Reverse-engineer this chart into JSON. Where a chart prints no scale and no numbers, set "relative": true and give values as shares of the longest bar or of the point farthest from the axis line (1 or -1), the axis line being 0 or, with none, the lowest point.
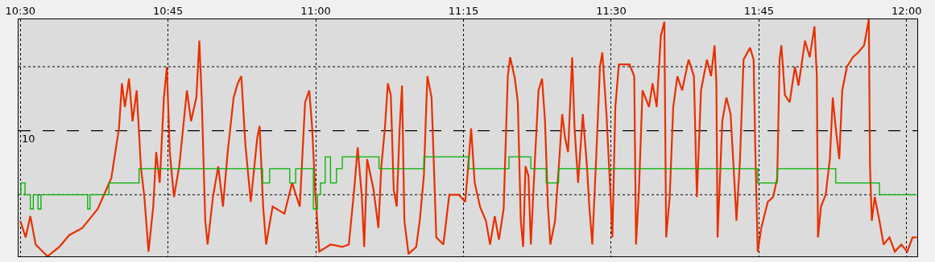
{
  "chart_data": {
    "type": "line",
    "relative": true,
    "grid": "x",
    "marker": "none",
    "line_style": "solid",
    "xlim": [
      10.497,
      12.018
    ],
    "xticks": [
      {
        "value": 10.5,
        "label": "10:30"
      },
      {
        "value": 10.75,
        "label": "10:45"
      },
      {
        "value": 11,
        "label": "11:00"
      },
      {
        "value": 11.25,
        "label": "11:15"
      },
      {
        "value": 11.5,
        "label": "11:30"
      },
      {
        "value": 11.75,
        "label": "11:45"
      },
      {
        "value": 12,
        "label": "12:00"
      }
    ],
    "ref_lines": [
      {
        "axis": "y",
        "value": 0.8,
        "label": null,
        "line_style": "dotted",
        "color": "#000000"
      },
      {
        "axis": "y",
        "value": 0.53,
        "label": null,
        "line_style": "dashed",
        "color": "#000000"
      },
      {
        "axis": "y",
        "value": 0.26,
        "label": null,
        "line_style": "dotted",
        "color": "#000000"
      }
    ],
    "annotations": [
      "10"
    ],
    "series": [
      {
        "color": "#e83000",
        "x": [
          10.5,
          10.509,
          10.517,
          10.526,
          10.546,
          10.566,
          10.583,
          10.605,
          10.631,
          10.654,
          10.667,
          10.672,
          10.677,
          10.684,
          10.69,
          10.697,
          10.704,
          10.71,
          10.717,
          10.725,
          10.73,
          10.736,
          10.743,
          10.748,
          10.753,
          10.76,
          10.769,
          10.782,
          10.789,
          10.798,
          10.803,
          10.807,
          10.813,
          10.817,
          10.826,
          10.835,
          10.843,
          10.851,
          10.861,
          10.868,
          10.874,
          10.881,
          10.89,
          10.901,
          10.905,
          10.911,
          10.916,
          10.927,
          10.947,
          10.96,
          10.973,
          10.982,
          10.989,
          10.994,
          10.999,
          11.006,
          11.025,
          11.045,
          11.056,
          11.065,
          11.071,
          11.078,
          11.082,
          11.087,
          11.098,
          11.106,
          11.111,
          11.117,
          11.122,
          11.127,
          11.132,
          11.137,
          11.142,
          11.146,
          11.15,
          11.157,
          11.17,
          11.176,
          11.183,
          11.187,
          11.189,
          11.196,
          11.2,
          11.204,
          11.216,
          11.226,
          11.242,
          11.253,
          11.258,
          11.263,
          11.269,
          11.278,
          11.288,
          11.295,
          11.303,
          11.31,
          11.318,
          11.325,
          11.329,
          11.337,
          11.342,
          11.347,
          11.351,
          11.355,
          11.36,
          11.364,
          11.371,
          11.377,
          11.383,
          11.388,
          11.393,
          11.397,
          11.405,
          11.413,
          11.417,
          11.422,
          11.427,
          11.434,
          11.438,
          11.444,
          11.452,
          11.459,
          11.463,
          11.468,
          11.475,
          11.481,
          11.485,
          11.492,
          11.499,
          11.502,
          11.507,
          11.513,
          11.52,
          11.531,
          11.539,
          11.542,
          11.547,
          11.553,
          11.564,
          11.57,
          11.577,
          11.584,
          11.59,
          11.593,
          11.599,
          11.605,
          11.612,
          11.62,
          11.631,
          11.64,
          11.645,
          11.652,
          11.662,
          11.669,
          11.675,
          11.678,
          11.68,
          11.688,
          11.695,
          11.702,
          11.708,
          11.712,
          11.718,
          11.724,
          11.735,
          11.741,
          11.744,
          11.748,
          11.754,
          11.765,
          11.774,
          11.781,
          11.785,
          11.788,
          11.794,
          11.802,
          11.811,
          11.817,
          11.828,
          11.836,
          11.844,
          11.848,
          11.85,
          11.855,
          11.863,
          11.87,
          11.875,
          11.88,
          11.886,
          11.891,
          11.899,
          11.909,
          11.918,
          11.928,
          11.936,
          11.938,
          11.941,
          11.946,
          11.954,
          11.961,
          11.971,
          11.98,
          11.991,
          12.001,
          12.01,
          12.017
        ],
        "values": [
          0.15,
          0.08,
          0.17,
          0.05,
          0,
          0.04,
          0.09,
          0.12,
          0.2,
          0.33,
          0.54,
          0.73,
          0.63,
          0.75,
          0.57,
          0.7,
          0.38,
          0.25,
          0.02,
          0.21,
          0.44,
          0.31,
          0.67,
          0.8,
          0.44,
          0.25,
          0.38,
          0.7,
          0.57,
          0.67,
          0.91,
          0.67,
          0.15,
          0.05,
          0.25,
          0.38,
          0.21,
          0.44,
          0.67,
          0.73,
          0.76,
          0.47,
          0.23,
          0.5,
          0.55,
          0.21,
          0.05,
          0.21,
          0.18,
          0.31,
          0.21,
          0.65,
          0.7,
          0.54,
          0.28,
          0.02,
          0.05,
          0.04,
          0.05,
          0.28,
          0.46,
          0.25,
          0.04,
          0.41,
          0.28,
          0.12,
          0.38,
          0.54,
          0.73,
          0.68,
          0.28,
          0.21,
          0.54,
          0.72,
          0.15,
          0.01,
          0.04,
          0.15,
          0.34,
          0.63,
          0.76,
          0.67,
          0.38,
          0.08,
          0.05,
          0.26,
          0.26,
          0.23,
          0.38,
          0.54,
          0.31,
          0.21,
          0.15,
          0.05,
          0.17,
          0.07,
          0.2,
          0.76,
          0.84,
          0.75,
          0.65,
          0.15,
          0.04,
          0.38,
          0.34,
          0.05,
          0.41,
          0.7,
          0.75,
          0.57,
          0.21,
          0.05,
          0.15,
          0.44,
          0.6,
          0.5,
          0.44,
          0.84,
          0.54,
          0.31,
          0.6,
          0.38,
          0.21,
          0.05,
          0.44,
          0.8,
          0.86,
          0.6,
          0.25,
          0.08,
          0.63,
          0.81,
          0.81,
          0.81,
          0.76,
          0.05,
          0.28,
          0.7,
          0.63,
          0.73,
          0.63,
          0.93,
          0.99,
          0.08,
          0.25,
          0.63,
          0.76,
          0.7,
          0.83,
          0.76,
          0.25,
          0.7,
          0.83,
          0.76,
          0.89,
          0.73,
          0.08,
          0.57,
          0.67,
          0.6,
          0.34,
          0.15,
          0.41,
          0.83,
          0.88,
          0.83,
          0.44,
          0.02,
          0.12,
          0.23,
          0.25,
          0.33,
          0.83,
          0.89,
          0.68,
          0.65,
          0.8,
          0.72,
          0.91,
          0.84,
          0.97,
          0.76,
          0.08,
          0.21,
          0.26,
          0.41,
          0.67,
          0.54,
          0.41,
          0.7,
          0.8,
          0.84,
          0.86,
          0.89,
          1,
          0.38,
          0.15,
          0.25,
          0.15,
          0.05,
          0.08,
          0.02,
          0.05,
          0.02,
          0.08,
          0.08
        ]
      },
      {
        "type": "step",
        "color": "#00b000",
        "x": [
          10.497,
          10.501,
          10.508,
          10.517,
          10.522,
          10.53,
          10.535,
          10.614,
          10.618,
          10.65,
          10.701,
          10.91,
          10.922,
          10.956,
          10.966,
          10.996,
          11.003,
          11.008,
          11.016,
          11.025,
          11.035,
          11.045,
          11.107,
          11.183,
          11.259,
          11.327,
          11.364,
          11.39,
          11.411,
          11.748,
          11.781,
          11.88,
          11.954,
          12.017
        ],
        "values": [
          0.26,
          0.31,
          0.26,
          0.2,
          0.26,
          0.2,
          0.26,
          0.2,
          0.26,
          0.31,
          0.37,
          0.31,
          0.37,
          0.31,
          0.37,
          0.2,
          0.26,
          0.31,
          0.42,
          0.31,
          0.37,
          0.42,
          0.37,
          0.42,
          0.37,
          0.42,
          0.37,
          0.31,
          0.37,
          0.31,
          0.37,
          0.31,
          0.26,
          0.26
        ]
      }
    ]
  }
}
